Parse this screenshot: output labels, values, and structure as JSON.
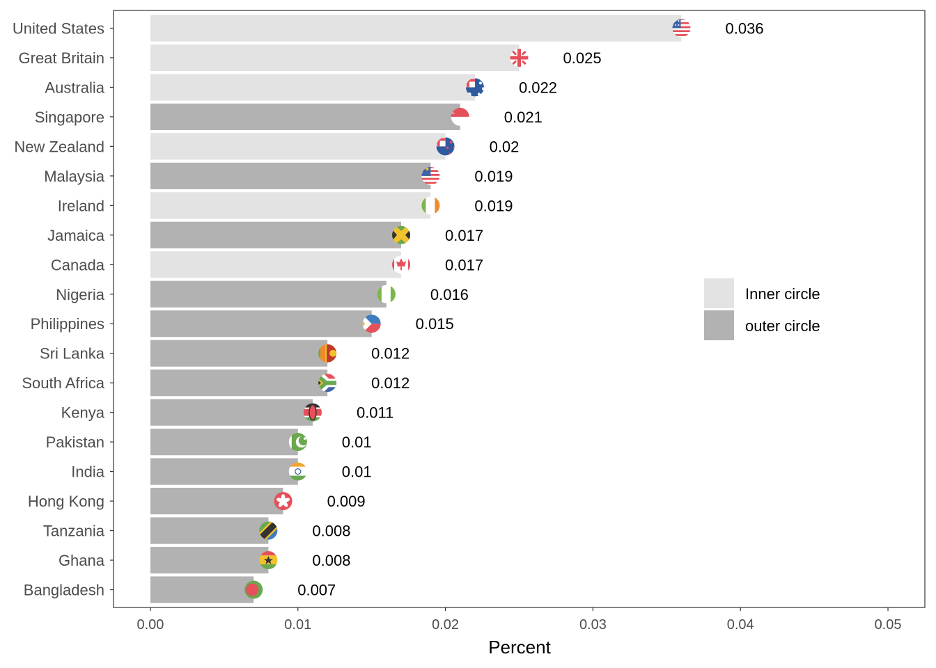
{
  "chart_data": {
    "type": "bar",
    "orientation": "horizontal",
    "xlabel": "Percent",
    "ylabel": "",
    "xlim": [
      -0.0025,
      0.0525
    ],
    "x_ticks": [
      0,
      0.01,
      0.02,
      0.03,
      0.04,
      0.05
    ],
    "x_tick_labels": [
      "0.00",
      "0.01",
      "0.02",
      "0.03",
      "0.04",
      "0.05"
    ],
    "grid": false,
    "legend_position": "right",
    "groups": [
      {
        "name": "Inner circle",
        "color": "#e3e3e3"
      },
      {
        "name": "outer circle",
        "color": "#b2b2b2"
      }
    ],
    "bars": [
      {
        "country": "United States",
        "value": 0.036,
        "label": "0.036",
        "group": "Inner circle",
        "flag": "us-flag-icon"
      },
      {
        "country": "Great Britain",
        "value": 0.025,
        "label": "0.025",
        "group": "Inner circle",
        "flag": "gb-flag-icon"
      },
      {
        "country": "Australia",
        "value": 0.022,
        "label": "0.022",
        "group": "Inner circle",
        "flag": "au-flag-icon"
      },
      {
        "country": "Singapore",
        "value": 0.021,
        "label": "0.021",
        "group": "outer circle",
        "flag": "sg-flag-icon"
      },
      {
        "country": "New Zealand",
        "value": 0.02,
        "label": "0.02",
        "group": "Inner circle",
        "flag": "nz-flag-icon"
      },
      {
        "country": "Malaysia",
        "value": 0.019,
        "label": "0.019",
        "group": "outer circle",
        "flag": "my-flag-icon"
      },
      {
        "country": "Ireland",
        "value": 0.019,
        "label": "0.019",
        "group": "Inner circle",
        "flag": "ie-flag-icon"
      },
      {
        "country": "Jamaica",
        "value": 0.017,
        "label": "0.017",
        "group": "outer circle",
        "flag": "jm-flag-icon"
      },
      {
        "country": "Canada",
        "value": 0.017,
        "label": "0.017",
        "group": "Inner circle",
        "flag": "ca-flag-icon"
      },
      {
        "country": "Nigeria",
        "value": 0.016,
        "label": "0.016",
        "group": "outer circle",
        "flag": "ng-flag-icon"
      },
      {
        "country": "Philippines",
        "value": 0.015,
        "label": "0.015",
        "group": "outer circle",
        "flag": "ph-flag-icon"
      },
      {
        "country": "Sri Lanka",
        "value": 0.012,
        "label": "0.012",
        "group": "outer circle",
        "flag": "lk-flag-icon"
      },
      {
        "country": "South Africa",
        "value": 0.012,
        "label": "0.012",
        "group": "outer circle",
        "flag": "za-flag-icon"
      },
      {
        "country": "Kenya",
        "value": 0.011,
        "label": "0.011",
        "group": "outer circle",
        "flag": "ke-flag-icon"
      },
      {
        "country": "Pakistan",
        "value": 0.01,
        "label": "0.01",
        "group": "outer circle",
        "flag": "pk-flag-icon"
      },
      {
        "country": "India",
        "value": 0.01,
        "label": "0.01",
        "group": "outer circle",
        "flag": "in-flag-icon"
      },
      {
        "country": "Hong Kong",
        "value": 0.009,
        "label": "0.009",
        "group": "outer circle",
        "flag": "hk-flag-icon"
      },
      {
        "country": "Tanzania",
        "value": 0.008,
        "label": "0.008",
        "group": "outer circle",
        "flag": "tz-flag-icon"
      },
      {
        "country": "Ghana",
        "value": 0.008,
        "label": "0.008",
        "group": "outer circle",
        "flag": "gh-flag-icon"
      },
      {
        "country": "Bangladesh",
        "value": 0.007,
        "label": "0.007",
        "group": "outer circle",
        "flag": "bd-flag-icon"
      }
    ]
  }
}
